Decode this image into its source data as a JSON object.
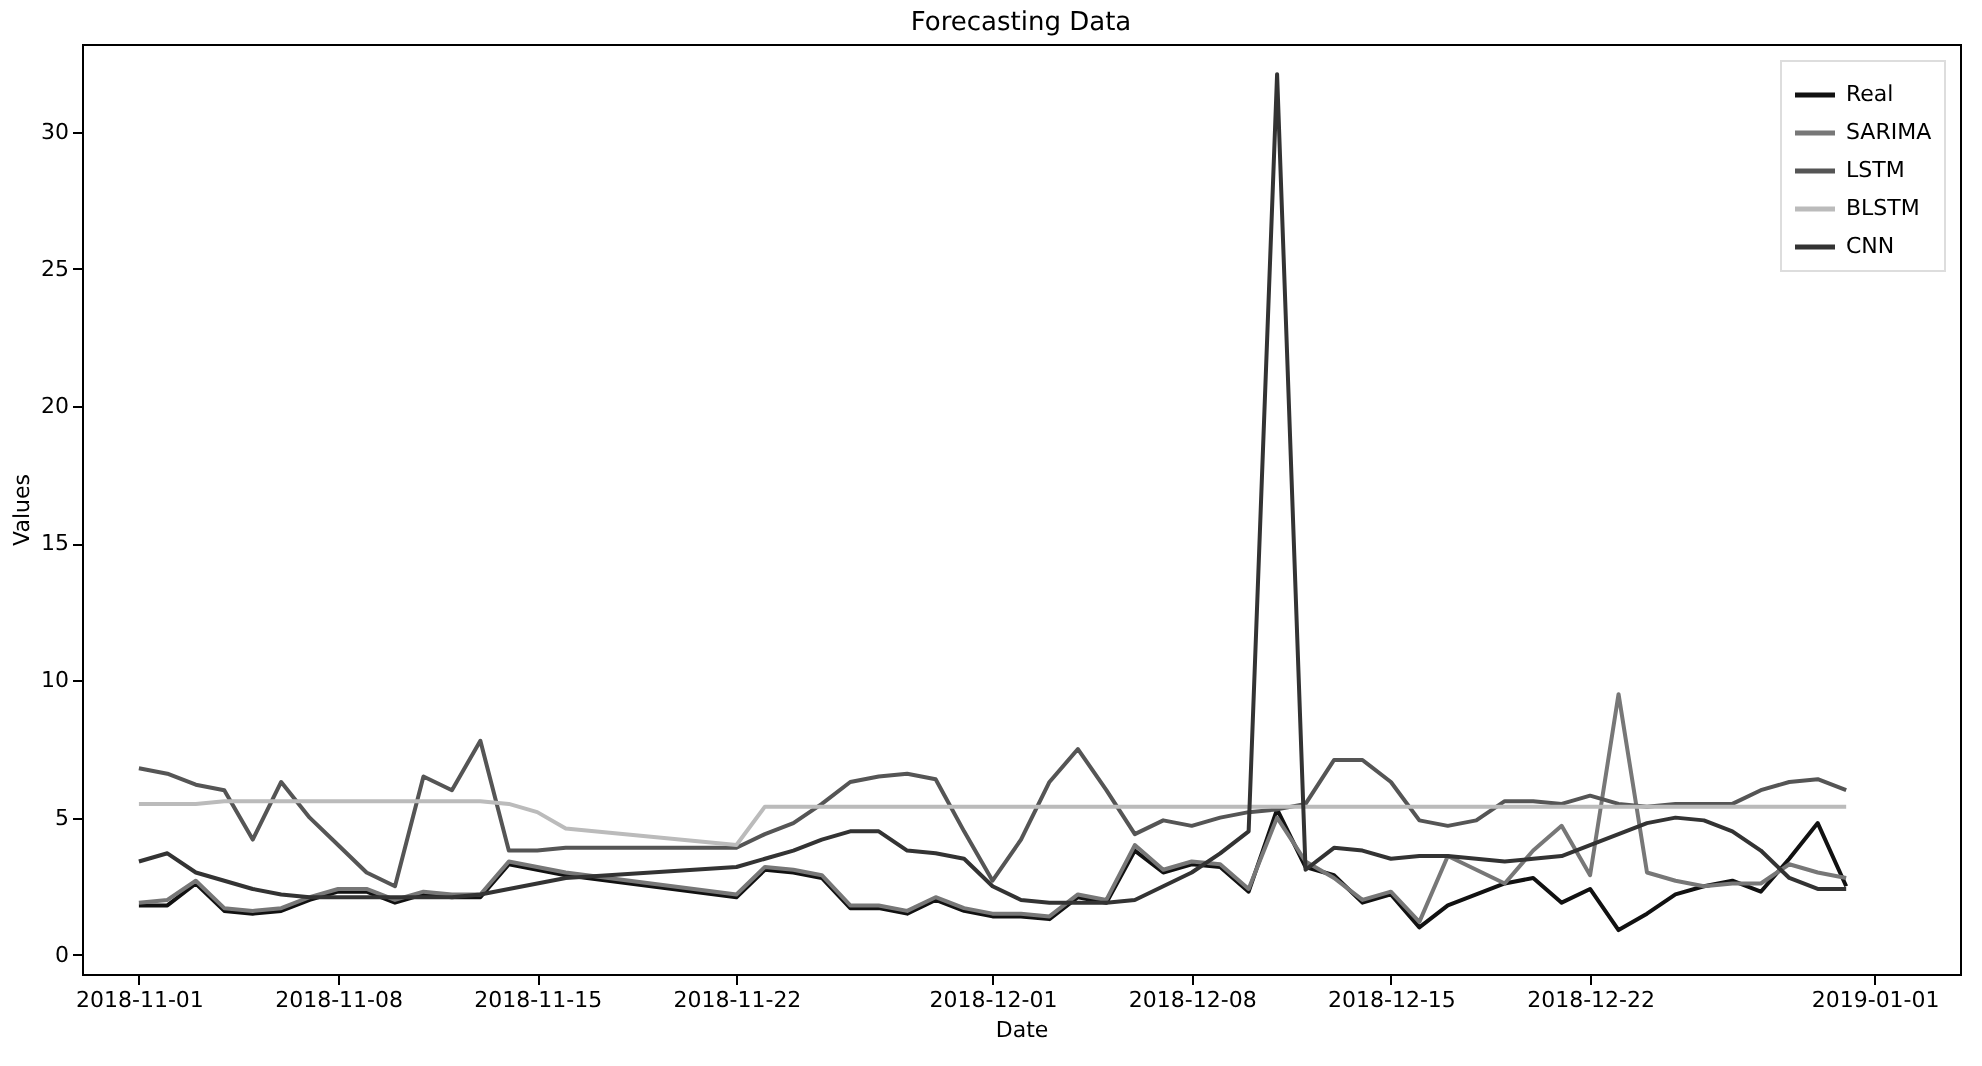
{
  "chart_data": {
    "type": "line",
    "title": "Forecasting Data",
    "xlabel": "Date",
    "ylabel": "Values",
    "xlim": [
      "2018-10-30",
      "2019-01-04"
    ],
    "ylim": [
      -0.7,
      33.2
    ],
    "xticks": [
      "2018-11-01",
      "2018-11-08",
      "2018-11-15",
      "2018-11-22",
      "2018-12-01",
      "2018-12-08",
      "2018-12-15",
      "2018-12-22",
      "2019-01-01"
    ],
    "yticks": [
      0,
      5,
      10,
      15,
      20,
      25,
      30
    ],
    "legend": "top right",
    "grid": false,
    "line_style": "solid",
    "x": [
      "2018-11-01",
      "2018-11-02",
      "2018-11-03",
      "2018-11-04",
      "2018-11-05",
      "2018-11-06",
      "2018-11-07",
      "2018-11-08",
      "2018-11-09",
      "2018-11-10",
      "2018-11-11",
      "2018-11-12",
      "2018-11-13",
      "2018-11-14",
      "2018-11-15",
      "2018-11-16",
      "2018-11-22",
      "2018-11-23",
      "2018-11-24",
      "2018-11-25",
      "2018-11-26",
      "2018-11-27",
      "2018-11-28",
      "2018-11-29",
      "2018-11-30",
      "2018-12-01",
      "2018-12-02",
      "2018-12-03",
      "2018-12-04",
      "2018-12-05",
      "2018-12-06",
      "2018-12-07",
      "2018-12-08",
      "2018-12-09",
      "2018-12-10",
      "2018-12-11",
      "2018-12-12",
      "2018-12-13",
      "2018-12-14",
      "2018-12-15",
      "2018-12-16",
      "2018-12-17",
      "2018-12-18",
      "2018-12-19",
      "2018-12-20",
      "2018-12-21",
      "2018-12-22",
      "2018-12-23",
      "2018-12-24",
      "2018-12-25",
      "2018-12-26",
      "2018-12-27",
      "2018-12-28",
      "2018-12-29",
      "2018-12-30",
      "2018-12-31"
    ],
    "series": [
      {
        "name": "Real",
        "color": "#111111",
        "values": [
          1.8,
          1.8,
          2.6,
          1.6,
          1.5,
          1.6,
          2.0,
          2.3,
          2.3,
          1.9,
          2.2,
          2.1,
          2.1,
          3.3,
          3.1,
          2.9,
          2.1,
          3.1,
          3.0,
          2.8,
          1.7,
          1.7,
          1.5,
          2.0,
          1.6,
          1.4,
          1.4,
          1.3,
          2.1,
          1.9,
          3.8,
          3.0,
          3.3,
          3.2,
          2.3,
          5.3,
          3.2,
          2.9,
          1.9,
          2.2,
          1.0,
          1.8,
          2.2,
          2.6,
          2.8,
          1.9,
          2.4,
          0.9,
          1.5,
          2.2,
          2.5,
          2.7,
          2.3,
          3.5,
          4.8,
          2.5
        ]
      },
      {
        "name": "SARIMA",
        "color": "#777777",
        "values": [
          1.9,
          2.0,
          2.7,
          1.7,
          1.6,
          1.7,
          2.1,
          2.4,
          2.4,
          2.0,
          2.3,
          2.2,
          2.2,
          3.4,
          3.2,
          3.0,
          2.2,
          3.2,
          3.1,
          2.9,
          1.8,
          1.8,
          1.6,
          2.1,
          1.7,
          1.5,
          1.5,
          1.4,
          2.2,
          2.0,
          4.0,
          3.1,
          3.4,
          3.3,
          2.4,
          5.0,
          3.4,
          2.8,
          2.0,
          2.3,
          1.2,
          3.6,
          3.1,
          2.6,
          3.8,
          4.7,
          2.9,
          9.5,
          3.0,
          2.7,
          2.5,
          2.6,
          2.6,
          3.3,
          3.0,
          2.8
        ]
      },
      {
        "name": "LSTM",
        "color": "#555555",
        "values": [
          6.8,
          6.6,
          6.2,
          6.0,
          4.2,
          6.3,
          5.0,
          4.0,
          3.0,
          2.5,
          6.5,
          6.0,
          7.8,
          3.8,
          3.8,
          3.9,
          3.9,
          4.4,
          4.8,
          5.5,
          6.3,
          6.5,
          6.6,
          6.4,
          4.5,
          2.7,
          4.2,
          6.3,
          7.5,
          6.0,
          4.4,
          4.9,
          4.7,
          5.0,
          5.2,
          5.3,
          5.5,
          7.1,
          7.1,
          6.3,
          4.9,
          4.7,
          4.9,
          5.6,
          5.6,
          5.5,
          5.8,
          5.5,
          5.4,
          5.5,
          5.5,
          5.5,
          6.0,
          6.3,
          6.4,
          6.0
        ]
      },
      {
        "name": "BLSTM",
        "color": "#bbbbbb",
        "values": [
          5.5,
          5.5,
          5.5,
          5.6,
          5.6,
          5.6,
          5.6,
          5.6,
          5.6,
          5.6,
          5.6,
          5.6,
          5.6,
          5.5,
          5.2,
          4.6,
          4.0,
          5.4,
          5.4,
          5.4,
          5.4,
          5.4,
          5.4,
          5.4,
          5.4,
          5.4,
          5.4,
          5.4,
          5.4,
          5.4,
          5.4,
          5.4,
          5.4,
          5.4,
          5.4,
          5.4,
          5.4,
          5.4,
          5.4,
          5.4,
          5.4,
          5.4,
          5.4,
          5.4,
          5.4,
          5.4,
          5.4,
          5.4,
          5.4,
          5.4,
          5.4,
          5.4,
          5.4,
          5.4,
          5.4,
          5.4
        ]
      },
      {
        "name": "CNN",
        "color": "#333333",
        "values": [
          3.4,
          3.7,
          3.0,
          2.7,
          2.4,
          2.2,
          2.1,
          2.1,
          2.1,
          2.1,
          2.1,
          2.1,
          2.2,
          2.4,
          2.6,
          2.8,
          3.2,
          3.5,
          3.8,
          4.2,
          4.5,
          4.5,
          3.8,
          3.7,
          3.5,
          2.5,
          2.0,
          1.9,
          1.9,
          1.9,
          2.0,
          2.5,
          3.0,
          3.7,
          4.5,
          32.1,
          3.1,
          3.9,
          3.8,
          3.5,
          3.6,
          3.6,
          3.5,
          3.4,
          3.5,
          3.6,
          4.0,
          4.4,
          4.8,
          5.0,
          4.9,
          4.5,
          3.8,
          2.8,
          2.4,
          2.4
        ]
      }
    ]
  }
}
